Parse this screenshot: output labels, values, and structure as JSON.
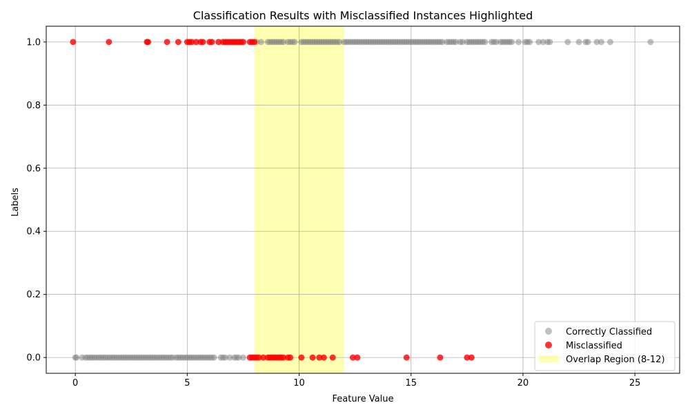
{
  "chart_data": {
    "type": "scatter",
    "title": "Classification Results with Misclassified Instances Highlighted",
    "xlabel": "Feature Value",
    "ylabel": "Labels",
    "xlim": [
      -1.3,
      27.0
    ],
    "ylim": [
      -0.05,
      1.05
    ],
    "xticks": [
      0,
      5,
      10,
      15,
      20,
      25
    ],
    "xtick_labels": [
      "0",
      "5",
      "10",
      "15",
      "20",
      "25"
    ],
    "yticks": [
      0.0,
      0.2,
      0.4,
      0.6,
      0.8,
      1.0
    ],
    "ytick_labels": [
      "0.0",
      "0.2",
      "0.4",
      "0.6",
      "0.8",
      "1.0"
    ],
    "grid": true,
    "legend_position": "lower-right",
    "region": {
      "label": "Overlap Region (8-12)",
      "x_start": 8,
      "x_end": 12,
      "color": "#ffff00",
      "opacity": 0.3
    },
    "series": [
      {
        "name": "Correctly Classified",
        "color": "#808080",
        "opacity": 0.5,
        "points": [
          [
            0.0,
            0
          ],
          [
            0.05,
            0
          ],
          [
            0.3,
            0
          ],
          [
            0.45,
            0
          ],
          [
            0.55,
            0
          ],
          [
            0.65,
            0
          ],
          [
            0.75,
            0
          ],
          [
            0.85,
            0
          ],
          [
            0.95,
            0
          ],
          [
            1.05,
            0
          ],
          [
            1.15,
            0
          ],
          [
            1.25,
            0
          ],
          [
            1.35,
            0
          ],
          [
            1.45,
            0
          ],
          [
            1.55,
            0
          ],
          [
            1.65,
            0
          ],
          [
            1.75,
            0
          ],
          [
            1.85,
            0
          ],
          [
            1.95,
            0
          ],
          [
            2.05,
            0
          ],
          [
            2.15,
            0
          ],
          [
            2.25,
            0
          ],
          [
            2.35,
            0
          ],
          [
            2.45,
            0
          ],
          [
            2.55,
            0
          ],
          [
            2.65,
            0
          ],
          [
            2.75,
            0
          ],
          [
            2.85,
            0
          ],
          [
            2.95,
            0
          ],
          [
            3.05,
            0
          ],
          [
            3.15,
            0
          ],
          [
            3.25,
            0
          ],
          [
            3.35,
            0
          ],
          [
            3.45,
            0
          ],
          [
            3.55,
            0
          ],
          [
            3.65,
            0
          ],
          [
            3.75,
            0
          ],
          [
            3.85,
            0
          ],
          [
            3.95,
            0
          ],
          [
            4.05,
            0
          ],
          [
            4.15,
            0
          ],
          [
            4.25,
            0
          ],
          [
            4.35,
            0
          ],
          [
            4.5,
            0
          ],
          [
            4.6,
            0
          ],
          [
            4.7,
            0
          ],
          [
            4.8,
            0
          ],
          [
            4.9,
            0
          ],
          [
            5.0,
            0
          ],
          [
            5.1,
            0
          ],
          [
            5.2,
            0
          ],
          [
            5.3,
            0
          ],
          [
            5.4,
            0
          ],
          [
            5.5,
            0
          ],
          [
            5.6,
            0
          ],
          [
            5.7,
            0
          ],
          [
            5.8,
            0
          ],
          [
            5.9,
            0
          ],
          [
            6.0,
            0
          ],
          [
            6.1,
            0
          ],
          [
            6.2,
            0
          ],
          [
            6.5,
            0
          ],
          [
            6.6,
            0
          ],
          [
            6.7,
            0
          ],
          [
            6.9,
            0
          ],
          [
            7.1,
            0
          ],
          [
            7.2,
            0
          ],
          [
            7.3,
            0
          ],
          [
            7.5,
            0
          ],
          [
            8.1,
            1
          ],
          [
            8.3,
            1
          ],
          [
            8.6,
            1
          ],
          [
            8.7,
            1
          ],
          [
            8.8,
            1
          ],
          [
            8.9,
            1
          ],
          [
            9.0,
            1
          ],
          [
            9.1,
            1
          ],
          [
            9.2,
            1
          ],
          [
            9.3,
            1
          ],
          [
            9.5,
            1
          ],
          [
            9.6,
            1
          ],
          [
            9.7,
            1
          ],
          [
            9.8,
            1
          ],
          [
            10.1,
            1
          ],
          [
            10.2,
            1
          ],
          [
            10.3,
            1
          ],
          [
            10.4,
            1
          ],
          [
            10.5,
            1
          ],
          [
            10.6,
            1
          ],
          [
            10.7,
            1
          ],
          [
            10.8,
            1
          ],
          [
            10.9,
            1
          ],
          [
            11.0,
            1
          ],
          [
            11.1,
            1
          ],
          [
            11.2,
            1
          ],
          [
            11.3,
            1
          ],
          [
            11.4,
            1
          ],
          [
            11.5,
            1
          ],
          [
            11.6,
            1
          ],
          [
            11.7,
            1
          ],
          [
            11.8,
            1
          ],
          [
            12.0,
            1
          ],
          [
            12.1,
            1
          ],
          [
            12.2,
            1
          ],
          [
            12.3,
            1
          ],
          [
            12.4,
            1
          ],
          [
            12.5,
            1
          ],
          [
            12.6,
            1
          ],
          [
            12.7,
            1
          ],
          [
            12.8,
            1
          ],
          [
            12.9,
            1
          ],
          [
            13.0,
            1
          ],
          [
            13.1,
            1
          ],
          [
            13.2,
            1
          ],
          [
            13.3,
            1
          ],
          [
            13.4,
            1
          ],
          [
            13.5,
            1
          ],
          [
            13.6,
            1
          ],
          [
            13.7,
            1
          ],
          [
            13.8,
            1
          ],
          [
            13.9,
            1
          ],
          [
            14.0,
            1
          ],
          [
            14.1,
            1
          ],
          [
            14.2,
            1
          ],
          [
            14.3,
            1
          ],
          [
            14.4,
            1
          ],
          [
            14.5,
            1
          ],
          [
            14.6,
            1
          ],
          [
            14.7,
            1
          ],
          [
            14.8,
            1
          ],
          [
            14.9,
            1
          ],
          [
            15.0,
            1
          ],
          [
            15.1,
            1
          ],
          [
            15.2,
            1
          ],
          [
            15.3,
            1
          ],
          [
            15.4,
            1
          ],
          [
            15.5,
            1
          ],
          [
            15.6,
            1
          ],
          [
            15.7,
            1
          ],
          [
            15.8,
            1
          ],
          [
            15.9,
            1
          ],
          [
            16.0,
            1
          ],
          [
            16.1,
            1
          ],
          [
            16.2,
            1
          ],
          [
            16.3,
            1
          ],
          [
            16.4,
            1
          ],
          [
            16.6,
            1
          ],
          [
            16.7,
            1
          ],
          [
            16.8,
            1
          ],
          [
            16.9,
            1
          ],
          [
            17.0,
            1
          ],
          [
            17.2,
            1
          ],
          [
            17.3,
            1
          ],
          [
            17.5,
            1
          ],
          [
            17.6,
            1
          ],
          [
            17.7,
            1
          ],
          [
            17.8,
            1
          ],
          [
            17.9,
            1
          ],
          [
            18.0,
            1
          ],
          [
            18.1,
            1
          ],
          [
            18.2,
            1
          ],
          [
            18.3,
            1
          ],
          [
            18.6,
            1
          ],
          [
            18.7,
            1
          ],
          [
            18.8,
            1
          ],
          [
            19.0,
            1
          ],
          [
            19.1,
            1
          ],
          [
            19.2,
            1
          ],
          [
            19.3,
            1
          ],
          [
            19.4,
            1
          ],
          [
            19.5,
            1
          ],
          [
            19.8,
            1
          ],
          [
            20.1,
            1
          ],
          [
            20.2,
            1
          ],
          [
            20.3,
            1
          ],
          [
            20.7,
            1
          ],
          [
            20.9,
            1
          ],
          [
            21.1,
            1
          ],
          [
            21.2,
            1
          ],
          [
            22.0,
            1
          ],
          [
            22.5,
            1
          ],
          [
            22.8,
            1
          ],
          [
            22.9,
            1
          ],
          [
            23.3,
            1
          ],
          [
            23.5,
            1
          ],
          [
            23.9,
            1
          ],
          [
            25.7,
            1
          ]
        ]
      },
      {
        "name": "Misclassified",
        "color": "#ff0000",
        "opacity": 0.8,
        "points": [
          [
            -0.1,
            1
          ],
          [
            1.5,
            1
          ],
          [
            3.2,
            1
          ],
          [
            3.25,
            1
          ],
          [
            4.1,
            1
          ],
          [
            4.6,
            1
          ],
          [
            5.0,
            1
          ],
          [
            5.1,
            1
          ],
          [
            5.2,
            1
          ],
          [
            5.4,
            1
          ],
          [
            5.6,
            1
          ],
          [
            5.7,
            1
          ],
          [
            6.0,
            1
          ],
          [
            6.1,
            1
          ],
          [
            6.4,
            1
          ],
          [
            6.6,
            1
          ],
          [
            6.7,
            1
          ],
          [
            6.8,
            1
          ],
          [
            6.9,
            1
          ],
          [
            7.0,
            1
          ],
          [
            7.1,
            1
          ],
          [
            7.2,
            1
          ],
          [
            7.3,
            1
          ],
          [
            7.4,
            1
          ],
          [
            7.5,
            1
          ],
          [
            7.8,
            1
          ],
          [
            7.9,
            1
          ],
          [
            8.0,
            1
          ],
          [
            7.8,
            0
          ],
          [
            7.9,
            0
          ],
          [
            8.0,
            0
          ],
          [
            8.1,
            0
          ],
          [
            8.2,
            0
          ],
          [
            8.4,
            0
          ],
          [
            8.6,
            0
          ],
          [
            8.7,
            0
          ],
          [
            8.8,
            0
          ],
          [
            8.9,
            0
          ],
          [
            9.0,
            0
          ],
          [
            9.1,
            0
          ],
          [
            9.2,
            0
          ],
          [
            9.3,
            0
          ],
          [
            9.5,
            0
          ],
          [
            9.6,
            0
          ],
          [
            10.1,
            0
          ],
          [
            10.6,
            0
          ],
          [
            10.9,
            0
          ],
          [
            11.1,
            0
          ],
          [
            11.5,
            0
          ],
          [
            12.4,
            0
          ],
          [
            12.6,
            0
          ],
          [
            14.8,
            0
          ],
          [
            16.3,
            0
          ],
          [
            17.5,
            0
          ],
          [
            17.7,
            0
          ]
        ]
      }
    ]
  }
}
